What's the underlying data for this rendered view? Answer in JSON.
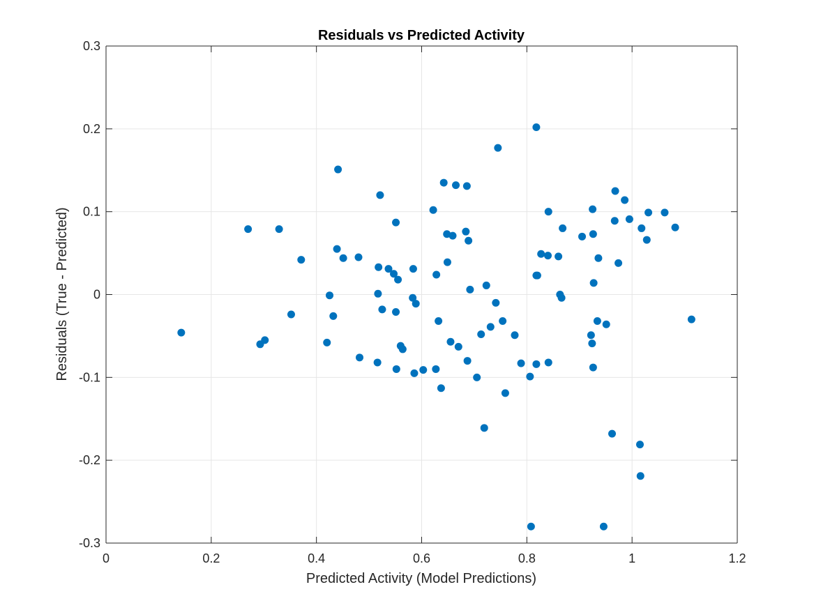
{
  "chart_data": {
    "type": "scatter",
    "title": "Residuals vs Predicted Activity",
    "xlabel": "Predicted Activity (Model Predictions)",
    "ylabel": "Residuals (True - Predicted)",
    "xlim": [
      0,
      1.2
    ],
    "ylim": [
      -0.3,
      0.3
    ],
    "x_ticks": [
      0,
      0.2,
      0.4,
      0.6,
      0.8,
      1,
      1.2
    ],
    "x_tick_labels": [
      "0",
      "0.2",
      "0.4",
      "0.6",
      "0.8",
      "1",
      "1.2"
    ],
    "y_ticks": [
      -0.3,
      -0.2,
      -0.1,
      0,
      0.1,
      0.2,
      0.3
    ],
    "y_tick_labels": [
      "-0.3",
      "-0.2",
      "-0.1",
      "0",
      "0.1",
      "0.2",
      "0.3"
    ],
    "grid": true,
    "marker_color": "#0072BD",
    "points": [
      [
        0.143,
        -0.046
      ],
      [
        0.27,
        0.079
      ],
      [
        0.293,
        -0.06
      ],
      [
        0.302,
        -0.055
      ],
      [
        0.329,
        0.079
      ],
      [
        0.352,
        -0.024
      ],
      [
        0.371,
        0.042
      ],
      [
        0.42,
        -0.058
      ],
      [
        0.425,
        -0.001
      ],
      [
        0.432,
        -0.026
      ],
      [
        0.439,
        0.055
      ],
      [
        0.441,
        0.151
      ],
      [
        0.451,
        0.044
      ],
      [
        0.48,
        0.045
      ],
      [
        0.482,
        -0.076
      ],
      [
        0.516,
        -0.082
      ],
      [
        0.517,
        0.001
      ],
      [
        0.518,
        0.033
      ],
      [
        0.521,
        0.12
      ],
      [
        0.525,
        -0.018
      ],
      [
        0.537,
        0.031
      ],
      [
        0.547,
        0.025
      ],
      [
        0.551,
        -0.021
      ],
      [
        0.551,
        0.087
      ],
      [
        0.552,
        -0.09
      ],
      [
        0.555,
        0.018
      ],
      [
        0.56,
        -0.062
      ],
      [
        0.564,
        -0.066
      ],
      [
        0.583,
        -0.004
      ],
      [
        0.584,
        0.031
      ],
      [
        0.586,
        -0.095
      ],
      [
        0.589,
        -0.011
      ],
      [
        0.603,
        -0.091
      ],
      [
        0.622,
        0.102
      ],
      [
        0.627,
        -0.09
      ],
      [
        0.628,
        0.024
      ],
      [
        0.632,
        -0.032
      ],
      [
        0.637,
        -0.113
      ],
      [
        0.642,
        0.135
      ],
      [
        0.648,
        0.073
      ],
      [
        0.649,
        0.039
      ],
      [
        0.655,
        -0.057
      ],
      [
        0.659,
        0.071
      ],
      [
        0.665,
        0.132
      ],
      [
        0.67,
        -0.063
      ],
      [
        0.684,
        0.076
      ],
      [
        0.686,
        0.131
      ],
      [
        0.687,
        -0.08
      ],
      [
        0.689,
        0.065
      ],
      [
        0.692,
        0.006
      ],
      [
        0.705,
        -0.1
      ],
      [
        0.713,
        -0.048
      ],
      [
        0.719,
        -0.161
      ],
      [
        0.723,
        0.011
      ],
      [
        0.731,
        -0.039
      ],
      [
        0.741,
        -0.01
      ],
      [
        0.745,
        0.177
      ],
      [
        0.754,
        -0.032
      ],
      [
        0.759,
        -0.119
      ],
      [
        0.777,
        -0.049
      ],
      [
        0.789,
        -0.083
      ],
      [
        0.806,
        -0.099
      ],
      [
        0.808,
        -0.28
      ],
      [
        0.818,
        0.202
      ],
      [
        0.818,
        -0.084
      ],
      [
        0.818,
        0.023
      ],
      [
        0.82,
        0.023
      ],
      [
        0.827,
        0.049
      ],
      [
        0.84,
        0.047
      ],
      [
        0.841,
        -0.082
      ],
      [
        0.841,
        0.1
      ],
      [
        0.86,
        0.046
      ],
      [
        0.863,
        0.0
      ],
      [
        0.866,
        -0.004
      ],
      [
        0.868,
        0.08
      ],
      [
        0.905,
        0.07
      ],
      [
        0.922,
        -0.049
      ],
      [
        0.924,
        -0.059
      ],
      [
        0.925,
        0.103
      ],
      [
        0.926,
        -0.088
      ],
      [
        0.926,
        0.073
      ],
      [
        0.927,
        0.014
      ],
      [
        0.934,
        -0.032
      ],
      [
        0.936,
        0.044
      ],
      [
        0.946,
        -0.28
      ],
      [
        0.951,
        -0.036
      ],
      [
        0.962,
        -0.168
      ],
      [
        0.967,
        0.089
      ],
      [
        0.968,
        0.125
      ],
      [
        0.974,
        0.038
      ],
      [
        0.986,
        0.114
      ],
      [
        0.995,
        0.091
      ],
      [
        1.015,
        -0.181
      ],
      [
        1.016,
        -0.219
      ],
      [
        1.018,
        0.08
      ],
      [
        1.028,
        0.066
      ],
      [
        1.031,
        0.099
      ],
      [
        1.062,
        0.099
      ],
      [
        1.082,
        0.081
      ],
      [
        1.113,
        -0.03
      ]
    ]
  }
}
